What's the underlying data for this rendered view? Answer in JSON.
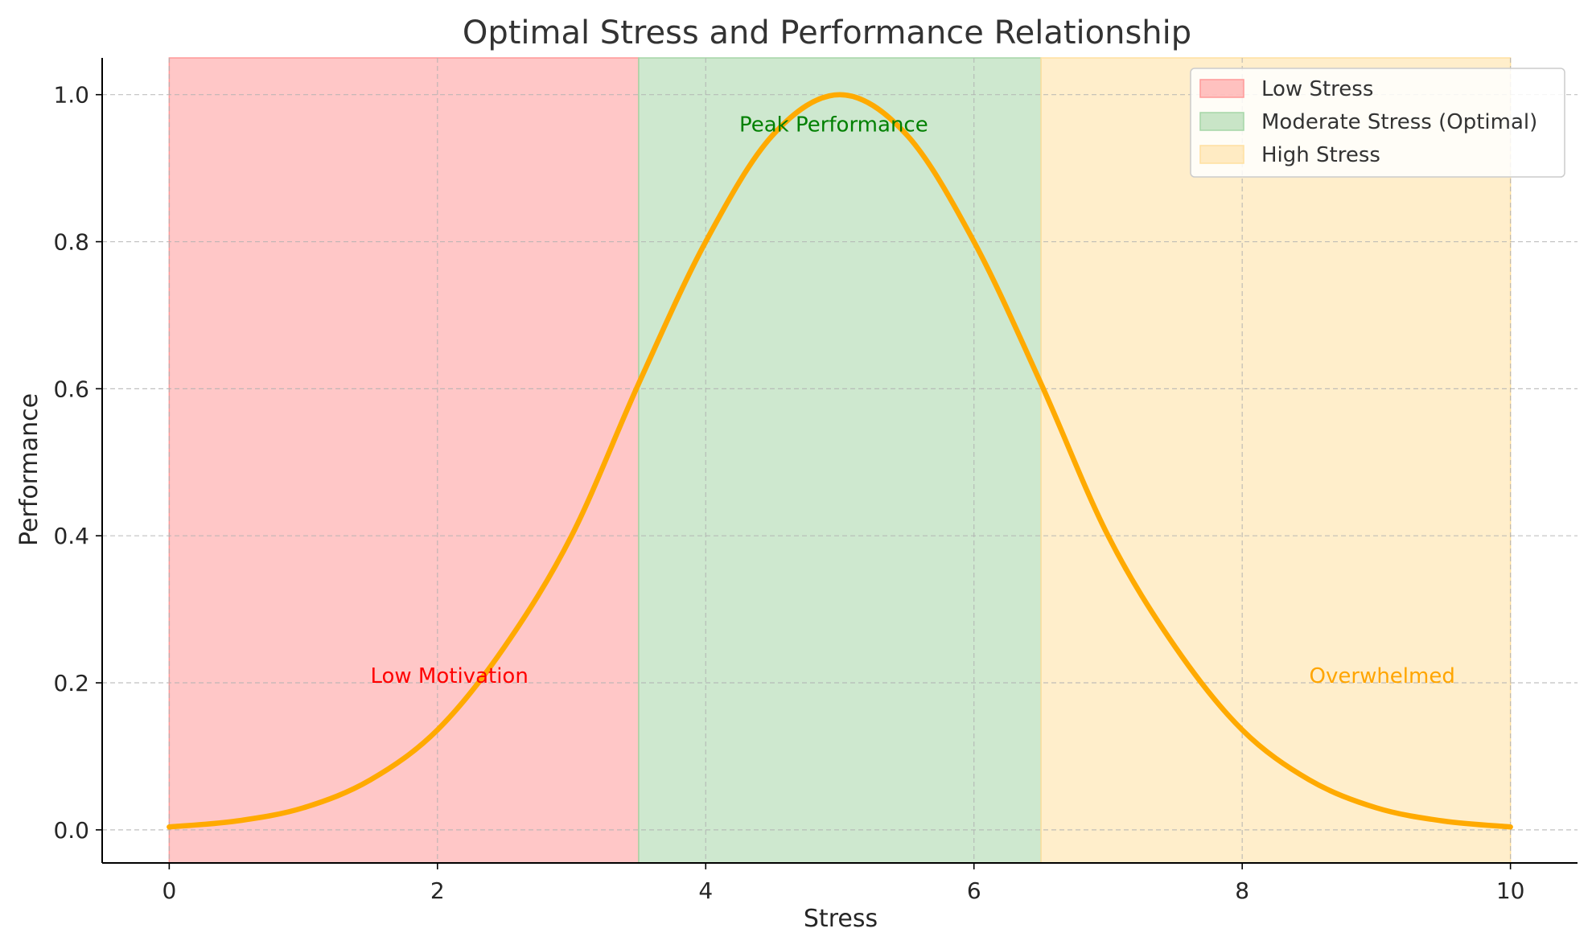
{
  "chart_data": {
    "type": "line",
    "title": "Optimal Stress and Performance Relationship",
    "xlabel": "Stress",
    "ylabel": "Performance",
    "xlim": [
      -0.5,
      10.5
    ],
    "ylim": [
      -0.045,
      1.05
    ],
    "xticks": [
      0,
      2,
      4,
      6,
      8,
      10
    ],
    "yticks": [
      0.0,
      0.2,
      0.4,
      0.6,
      0.8,
      1.0
    ],
    "xtick_labels": [
      "0",
      "2",
      "4",
      "6",
      "8",
      "10"
    ],
    "ytick_labels": [
      "0.0",
      "0.2",
      "0.4",
      "0.6",
      "0.8",
      "1.0"
    ],
    "grid": true,
    "legend_position": "top-right",
    "series": [
      {
        "color": "#FFAA00",
        "x": [
          0,
          0.5,
          1,
          1.5,
          2,
          2.5,
          3,
          3.5,
          4,
          4.5,
          5,
          5.5,
          6,
          6.5,
          7,
          7.5,
          8,
          8.5,
          9,
          9.5,
          10
        ],
        "y": [
          0.004,
          0.012,
          0.03,
          0.068,
          0.136,
          0.249,
          0.4,
          0.607,
          0.8,
          0.945,
          1.0,
          0.945,
          0.8,
          0.607,
          0.4,
          0.249,
          0.136,
          0.068,
          0.03,
          0.012,
          0.004
        ]
      }
    ],
    "regions": [
      {
        "name": "Low Stress",
        "x_start": 0,
        "x_end": 3.5,
        "color": "#FF9999"
      },
      {
        "name": "Moderate Stress (Optimal)",
        "x_start": 3.5,
        "x_end": 6.5,
        "color": "#A5D6A7"
      },
      {
        "name": "High Stress",
        "x_start": 6.5,
        "x_end": 10,
        "color": "#FFE0A0"
      }
    ],
    "annotations": [
      {
        "text": "Low Motivation",
        "x": 1.5,
        "y": 0.2,
        "color": "#FF0000"
      },
      {
        "text": "Peak Performance",
        "x": 4.25,
        "y": 0.95,
        "color": "#008000"
      },
      {
        "text": "Overwhelmed",
        "x": 8.5,
        "y": 0.2,
        "color": "#FFA500"
      }
    ]
  }
}
